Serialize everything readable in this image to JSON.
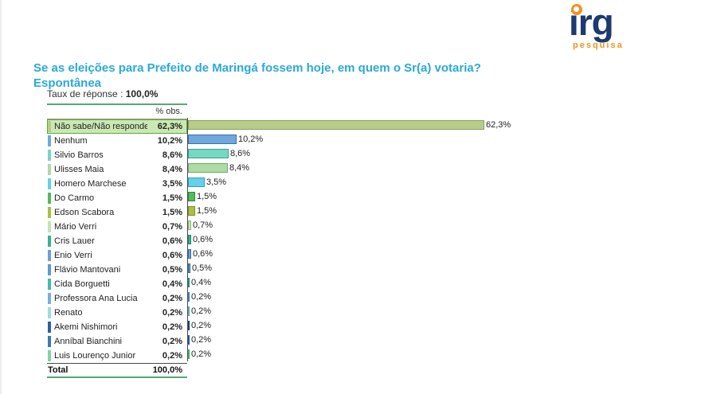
{
  "logo": {
    "text": "irg",
    "subtext": "pesquisa",
    "brand_color": "#1d3a70",
    "accent_color": "#f0931f"
  },
  "title": {
    "line1": "Se as eleições para Prefeito de Maringá fossem hoje, em quem o Sr(a) votaria?",
    "line2": "Espontânea",
    "color": "#2aa9d8"
  },
  "response_rate": {
    "label": "Taux de réponse :",
    "value": "100,0%"
  },
  "table": {
    "header": "% obs.",
    "total_label": "Total",
    "total_value": "100,0%"
  },
  "chart_data": {
    "type": "bar",
    "orientation": "horizontal",
    "title": "Se as eleições para Prefeito de Maringá fossem hoje, em quem o Sr(a) votaria? Espontânea",
    "xlabel": "% obs.",
    "ylabel": "",
    "xlim": [
      0,
      65
    ],
    "grid": false,
    "legend": false,
    "unit": "%",
    "highlighted_row": 0,
    "categories": [
      "Não sabe/Não respondeu",
      "Nenhum",
      "Silvio Barros",
      "Ulisses Maia",
      "Homero Marchese",
      "Do Carmo",
      "Edson Scabora",
      "Mário Verri",
      "Cris Lauer",
      "Enio Verri",
      "Flávio Mantovani",
      "Cida Borguetti",
      "Professora Ana Lucia",
      "Renato",
      "Akemi Nishimori",
      "Anníbal Bianchini",
      "Luis Lourenço Junior"
    ],
    "values": [
      62.3,
      10.2,
      8.6,
      8.4,
      3.5,
      1.5,
      1.5,
      0.7,
      0.6,
      0.6,
      0.5,
      0.4,
      0.2,
      0.2,
      0.2,
      0.2,
      0.2
    ],
    "value_labels": [
      "62,3%",
      "10,2%",
      "8,6%",
      "8,4%",
      "3,5%",
      "1,5%",
      "1,5%",
      "0,7%",
      "0,6%",
      "0,6%",
      "0,5%",
      "0,4%",
      "0,2%",
      "0,2%",
      "0,2%",
      "0,2%",
      "0,2%"
    ],
    "bar_colors": [
      "#b7cb8b",
      "#6fa8dc",
      "#76d7c2",
      "#aedaa4",
      "#66cfe9",
      "#55b95f",
      "#a9c045",
      "#c6e3b4",
      "#35b394",
      "#6e9ed6",
      "#5f9ad2",
      "#3fbcac",
      "#79aede",
      "#9cdce4",
      "#2b5fa5",
      "#3c79b8",
      "#7fd4a0"
    ],
    "bar_border_colors": [
      "#8ba356",
      "#3d6fa5",
      "#3aa38c",
      "#74ab6b",
      "#2f9fc4",
      "#2e8a3c",
      "#798f1f",
      "#8cba7c",
      "#1e8a6f",
      "#3f6fa8",
      "#35699c",
      "#238d7f",
      "#477fb3",
      "#60aab5",
      "#173f74",
      "#235a92",
      "#49a871"
    ],
    "highlight_bg": "#cbe8b2",
    "highlight_border": "#5fa93e"
  }
}
